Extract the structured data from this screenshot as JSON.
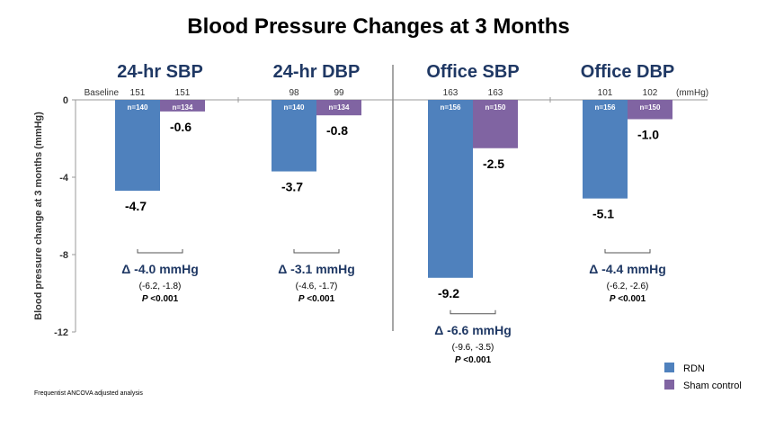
{
  "chart_data": {
    "type": "bar",
    "title": "Blood Pressure Changes at 3 Months",
    "ylabel": "Blood pressure change at 3 months (mmHg)",
    "ylim": [
      -12,
      0
    ],
    "yticks": [
      0,
      -4,
      -8,
      -12
    ],
    "baseline_label": "Baseline",
    "unit_label": "(mmHg)",
    "series": [
      {
        "name": "RDN",
        "color": "#4f81bd"
      },
      {
        "name": "Sham control",
        "color": "#8064a2"
      }
    ],
    "panels": [
      {
        "title": "24-hr SBP",
        "baselines": [
          "151",
          "151"
        ],
        "values": [
          -4.7,
          -0.6
        ],
        "value_labels": [
          "-4.7",
          "-0.6"
        ],
        "n_labels": [
          "n=140",
          "n=134"
        ],
        "delta": "Δ -4.0 mmHg",
        "ci": "(-6.2, -1.8)",
        "p_letter": "P",
        "p_value": " <0.001"
      },
      {
        "title": "24-hr DBP",
        "baselines": [
          "98",
          "99"
        ],
        "values": [
          -3.7,
          -0.8
        ],
        "value_labels": [
          "-3.7",
          "-0.8"
        ],
        "n_labels": [
          "n=140",
          "n=134"
        ],
        "delta": "Δ -3.1 mmHg",
        "ci": "(-4.6, -1.7)",
        "p_letter": "P",
        "p_value": " <0.001"
      },
      {
        "title": "Office SBP",
        "baselines": [
          "163",
          "163"
        ],
        "values": [
          -9.2,
          -2.5
        ],
        "value_labels": [
          "-9.2",
          "-2.5"
        ],
        "n_labels": [
          "n=156",
          "n=150"
        ],
        "delta": "Δ -6.6 mmHg",
        "ci": "(-9.6, -3.5)",
        "p_letter": "P",
        "p_value": " <0.001"
      },
      {
        "title": "Office DBP",
        "baselines": [
          "101",
          "102"
        ],
        "values": [
          -5.1,
          -1.0
        ],
        "value_labels": [
          "-5.1",
          "-1.0"
        ],
        "n_labels": [
          "n=156",
          "n=150"
        ],
        "delta": "Δ -4.4 mmHg",
        "ci": "(-6.2, -2.6)",
        "p_letter": "P",
        "p_value": " <0.001"
      }
    ],
    "legend": [
      "RDN",
      "Sham control"
    ],
    "legend_position": "bottom-right",
    "grid": false
  },
  "footnote": "Frequentist ANCOVA adjusted analysis"
}
